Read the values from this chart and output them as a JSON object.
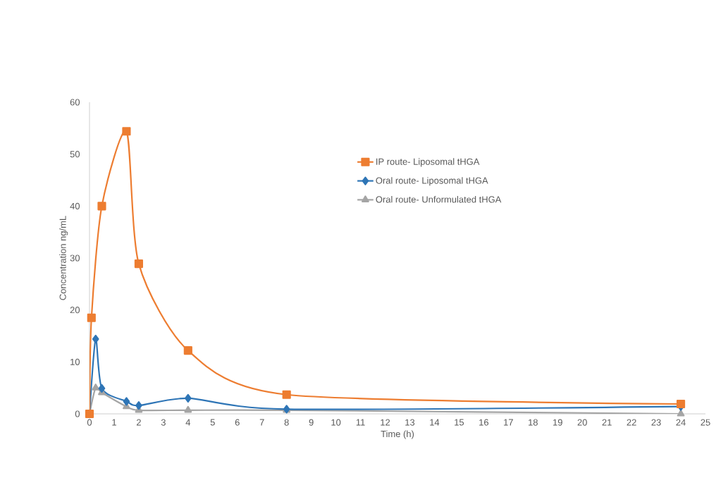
{
  "chart_data": {
    "type": "line",
    "xlabel": "Time (h)",
    "ylabel": "Concentration ng/mL",
    "xlim": [
      0,
      25
    ],
    "xticks": [
      0,
      1,
      2,
      3,
      4,
      5,
      6,
      7,
      8,
      9,
      10,
      11,
      12,
      13,
      14,
      15,
      16,
      17,
      18,
      19,
      20,
      21,
      22,
      23,
      24,
      25
    ],
    "ylim": [
      0,
      60
    ],
    "yticks": [
      0,
      10,
      20,
      30,
      40,
      50,
      60
    ],
    "grid": false,
    "legend": "right",
    "series": [
      {
        "name": "IP route- Liposomal tHGA",
        "color": "#ed7d31",
        "marker": "square",
        "x": [
          0,
          0.08,
          0.5,
          1.5,
          2,
          4,
          8,
          24
        ],
        "values": [
          0,
          18.5,
          40,
          54.4,
          28.9,
          12.2,
          3.7,
          1.9
        ]
      },
      {
        "name": "Oral route- Liposomal tHGA",
        "color": "#2e75b6",
        "marker": "diamond",
        "x": [
          0,
          0.25,
          0.5,
          1.5,
          2,
          4,
          8,
          24
        ],
        "values": [
          0,
          14.4,
          4.9,
          2.4,
          1.6,
          3.0,
          0.9,
          1.4
        ]
      },
      {
        "name": "Oral route- Unformulated tHGA",
        "color": "#a5a5a5",
        "marker": "triangle",
        "x": [
          0,
          0.25,
          0.5,
          1.5,
          2,
          4,
          8,
          24
        ],
        "values": [
          0,
          5.0,
          4.1,
          1.4,
          0.7,
          0.7,
          0.7,
          0
        ]
      }
    ]
  }
}
